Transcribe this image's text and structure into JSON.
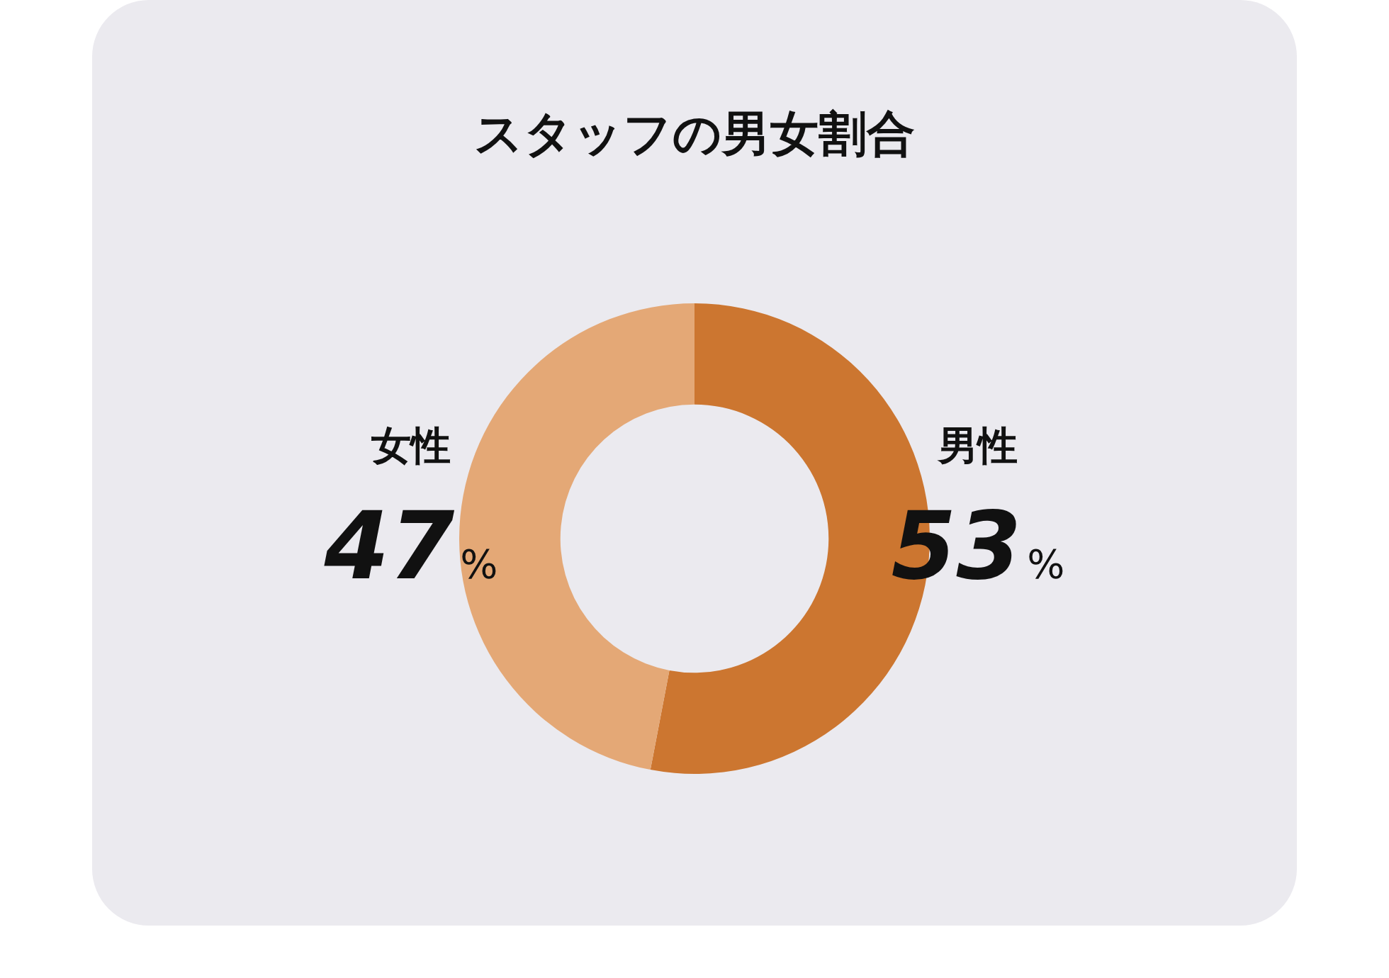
{
  "chart_data": {
    "type": "donut",
    "title": "スタッフの男女割合",
    "categories": [
      "男性",
      "女性"
    ],
    "values": [
      53,
      47
    ],
    "value_labels": [
      "53%",
      "47%"
    ],
    "colors": [
      "#cc7630",
      "#e4a876"
    ]
  }
}
